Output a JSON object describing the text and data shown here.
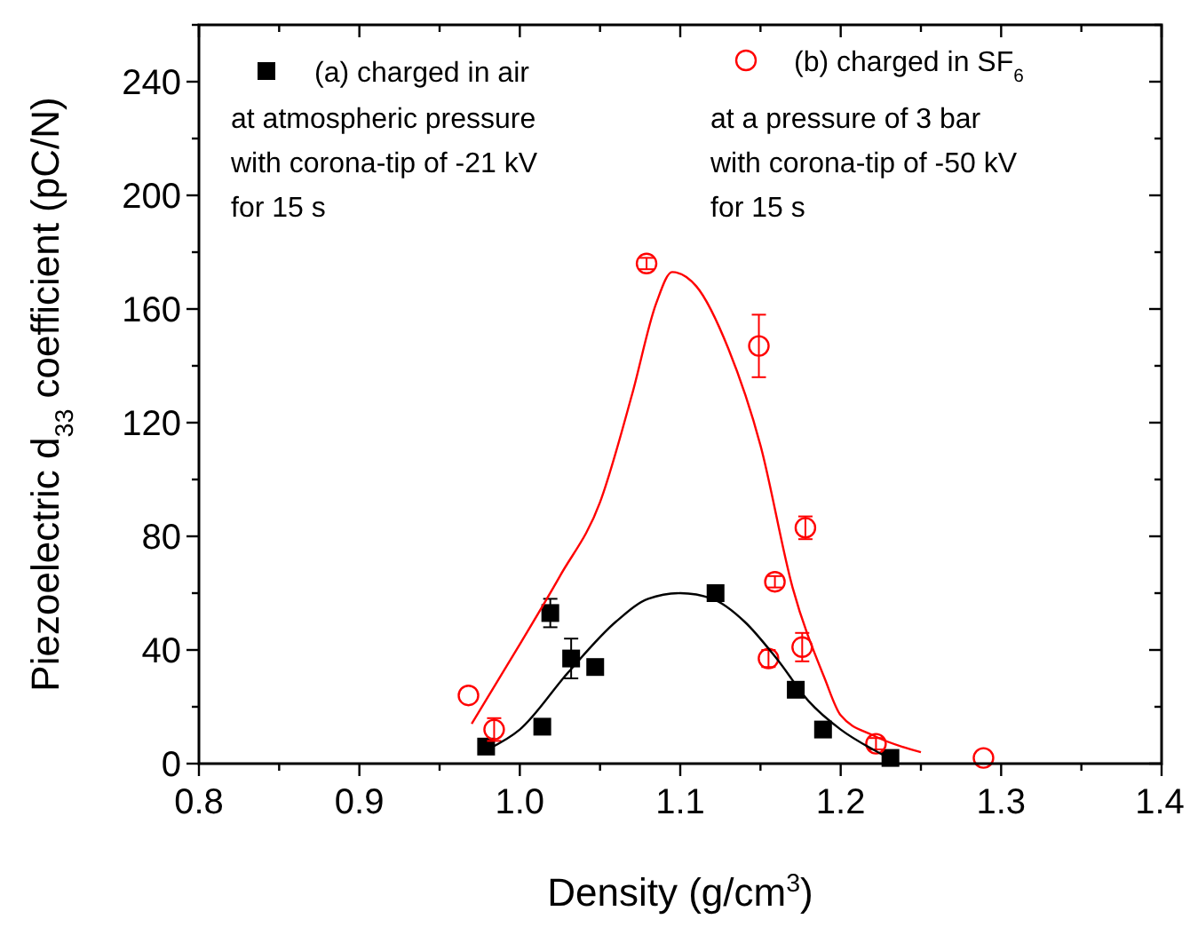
{
  "chart_data": {
    "type": "scatter",
    "xlabel": "Density (g/cm$^{3}$)",
    "ylabel": "Piezoelectric d$_{33}$ coefficient (pC/N)",
    "xlim": [
      0.8,
      1.4
    ],
    "ylim": [
      0,
      260
    ],
    "xticks": [
      0.8,
      0.9,
      {
        "value": 1,
        "label": "1.0"
      },
      1.1,
      1.2,
      1.3,
      1.4
    ],
    "yticks": [
      0,
      40,
      80,
      120,
      160,
      200,
      240
    ],
    "grid": false,
    "legend": "top",
    "series": [
      {
        "name": "(a) charged in air",
        "color": "#000000",
        "marker": "square",
        "x": [
          0.979,
          1.014,
          1.019,
          1.032,
          1.047,
          1.122,
          1.172,
          1.189,
          1.231
        ],
        "values": [
          6,
          13,
          53,
          37,
          34,
          60,
          26,
          12,
          2
        ],
        "errors": [
          null,
          null,
          5,
          7,
          null,
          null,
          null,
          null,
          null
        ]
      },
      {
        "name": "(b) charged in SF$_{6}$",
        "color": "#ff0000",
        "marker": "circle",
        "x": [
          0.968,
          0.984,
          1.079,
          1.149,
          1.159,
          1.178,
          1.176,
          1.155,
          1.222,
          1.289
        ],
        "values": [
          24,
          12,
          176,
          147,
          64,
          83,
          41,
          37,
          7,
          2
        ],
        "errors": [
          null,
          4,
          2,
          11,
          2,
          4,
          5,
          3,
          2,
          null
        ]
      },
      {
        "type": "line",
        "color": "#000000",
        "marker": "none",
        "x": [
          0.98,
          1.0,
          1.03,
          1.06,
          1.08,
          1.1,
          1.12,
          1.14,
          1.16,
          1.18,
          1.2,
          1.22,
          1.23
        ],
        "values": [
          5,
          12,
          32,
          50,
          58,
          60,
          58,
          50,
          37,
          22,
          12,
          5,
          2
        ]
      },
      {
        "type": "line",
        "color": "#ff0000",
        "marker": "none",
        "x": [
          0.97,
          1.0,
          1.025,
          1.05,
          1.07,
          1.085,
          1.095,
          1.11,
          1.13,
          1.15,
          1.17,
          1.19,
          1.2,
          1.22,
          1.25
        ],
        "values": [
          14,
          42,
          66,
          92,
          130,
          162,
          173,
          168,
          146,
          112,
          62,
          30,
          17,
          10,
          4
        ]
      }
    ],
    "annotations": [
      "at atmospheric pressure",
      "with corona-tip of -21 kV",
      "for 15 s",
      "at a pressure of 3 bar",
      "with corona-tip of -50 kV",
      "for 15 s"
    ]
  }
}
